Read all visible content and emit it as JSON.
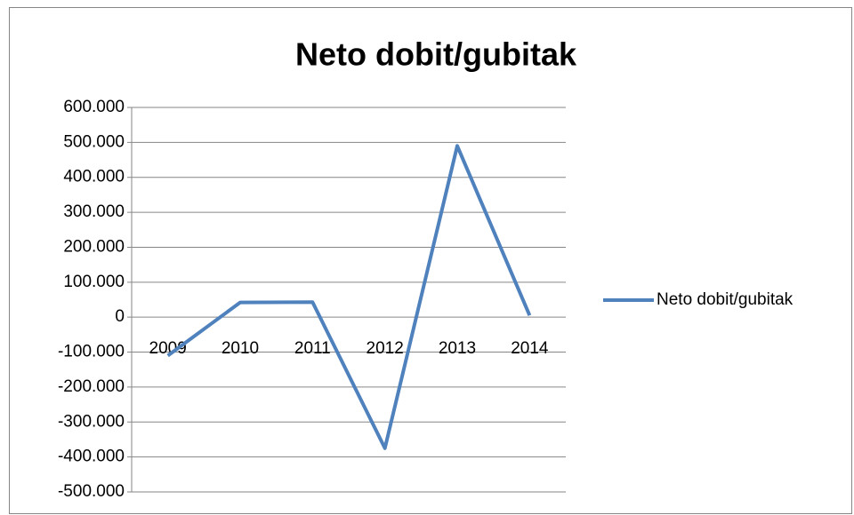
{
  "chart_data": {
    "type": "line",
    "title": "Neto dobit/gubitak",
    "categories": [
      "2009",
      "2010",
      "2011",
      "2012",
      "2013",
      "2014"
    ],
    "series": [
      {
        "name": "Neto dobit/gubitak",
        "color": "#4f81bd",
        "values": [
          -110000,
          42000,
          43000,
          -375000,
          490000,
          5000
        ]
      }
    ],
    "ylim": [
      -500000,
      600000
    ],
    "yticks": [
      {
        "value": -500000,
        "label": "-500.000"
      },
      {
        "value": -400000,
        "label": "-400.000"
      },
      {
        "value": -300000,
        "label": "-300.000"
      },
      {
        "value": -200000,
        "label": "-200.000"
      },
      {
        "value": -100000,
        "label": "-100.000"
      },
      0,
      {
        "value": 100000,
        "label": "100.000"
      },
      {
        "value": 200000,
        "label": "200.000"
      },
      {
        "value": 300000,
        "label": "300.000"
      },
      {
        "value": 400000,
        "label": "400.000"
      },
      {
        "value": 500000,
        "label": "500.000"
      },
      {
        "value": 600000,
        "label": "600.000"
      }
    ],
    "grid": true,
    "legend": "right"
  }
}
